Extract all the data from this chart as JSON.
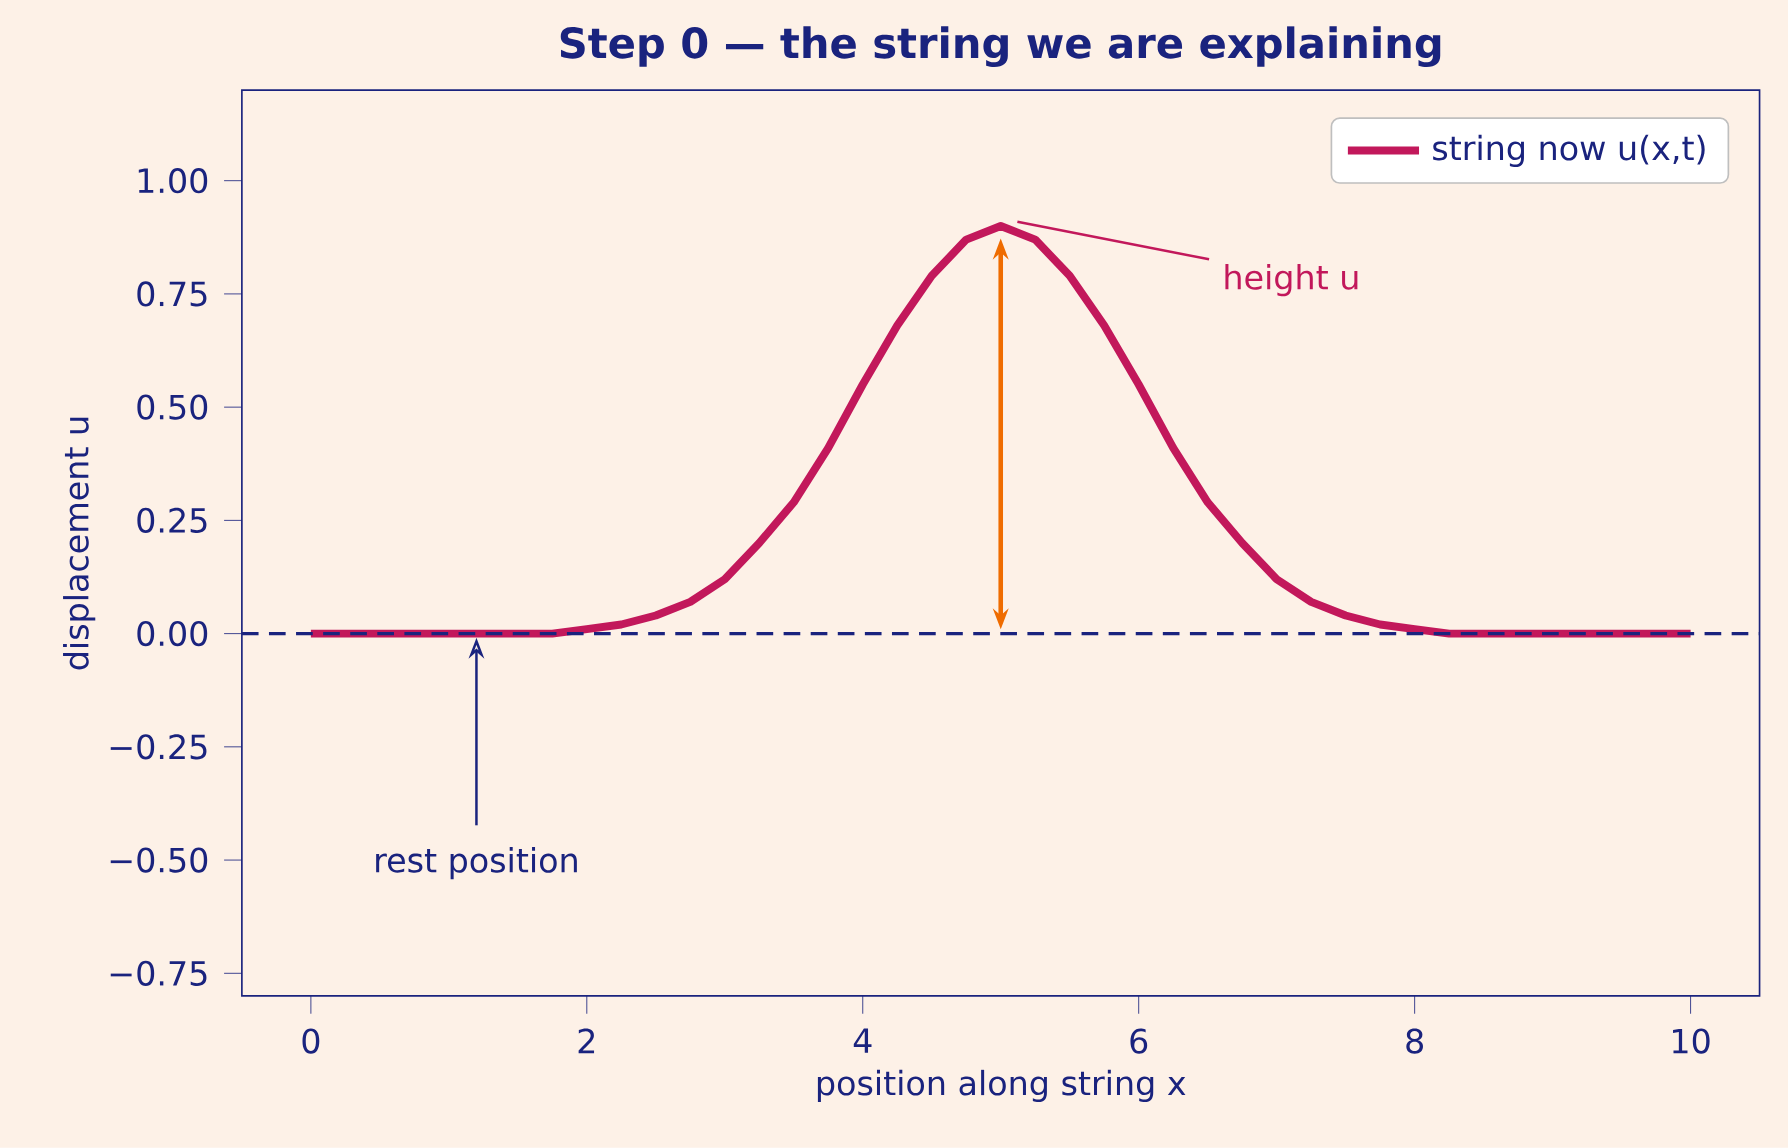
{
  "chart_data": {
    "type": "line",
    "title": "Step 0 — the string we are explaining",
    "xlabel": "position along string  x",
    "ylabel": "displacement  u",
    "x": [
      0,
      0.25,
      0.5,
      0.75,
      1,
      1.25,
      1.5,
      1.75,
      2,
      2.25,
      2.5,
      2.75,
      3,
      3.25,
      3.5,
      3.75,
      4,
      4.25,
      4.5,
      4.75,
      5,
      5.25,
      5.5,
      5.75,
      6,
      6.25,
      6.5,
      6.75,
      7,
      7.25,
      7.5,
      7.75,
      8,
      8.25,
      8.5,
      8.75,
      9,
      9.25,
      9.5,
      9.75,
      10
    ],
    "series": [
      {
        "name": "string now  u(x,t)",
        "color": "#c2185b",
        "values": [
          0,
          0,
          0,
          0,
          0,
          0,
          0,
          0,
          0.01,
          0.02,
          0.04,
          0.07,
          0.12,
          0.2,
          0.29,
          0.41,
          0.55,
          0.68,
          0.79,
          0.87,
          0.9,
          0.87,
          0.79,
          0.68,
          0.55,
          0.41,
          0.29,
          0.2,
          0.12,
          0.07,
          0.04,
          0.02,
          0.01,
          0,
          0,
          0,
          0,
          0,
          0,
          0,
          0
        ]
      }
    ],
    "xlim": [
      -0.5,
      10.5
    ],
    "ylim": [
      -0.8,
      1.2
    ],
    "xticks": [
      0,
      2,
      4,
      6,
      8,
      10
    ],
    "yticks": [
      {
        "value": -0.75,
        "label": "−0.75"
      },
      {
        "value": -0.5,
        "label": "−0.50"
      },
      {
        "value": -0.25,
        "label": "−0.25"
      },
      {
        "value": 0,
        "label": "0.00"
      },
      {
        "value": 0.25,
        "label": "0.25"
      },
      {
        "value": 0.5,
        "label": "0.50"
      },
      {
        "value": 0.75,
        "label": "0.75"
      },
      {
        "value": 1,
        "label": "1.00"
      }
    ],
    "ref_lines": [
      {
        "axis": "y",
        "value": 0,
        "color": "#1a237e",
        "line_style": "dashed"
      }
    ],
    "annotations": [
      {
        "text": "height u",
        "x": 5,
        "y": 0.9
      },
      {
        "text": "rest position",
        "x": 1.2,
        "y": 0
      }
    ],
    "legend": "top right",
    "grid": false,
    "marker": "none",
    "line_style": "solid"
  }
}
